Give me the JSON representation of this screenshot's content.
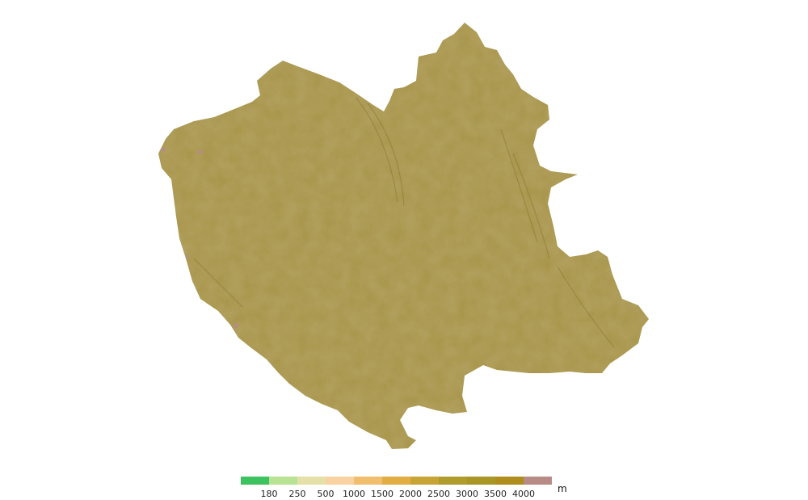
{
  "map": {
    "type": "elevation-relief",
    "fill_color": "#a8944a",
    "background": "#ffffff"
  },
  "legend": {
    "unit": "m",
    "colors": [
      "#3cc25e",
      "#b8e294",
      "#e4e0a8",
      "#f8d2a0",
      "#f0be6c",
      "#e2ae44",
      "#c8a436",
      "#b09c2c",
      "#a89626",
      "#b08e1e",
      "#b88c86"
    ],
    "ticks": [
      "180",
      "250",
      "500",
      "1000",
      "1500",
      "2000",
      "2500",
      "3000",
      "3500",
      "4000"
    ]
  }
}
